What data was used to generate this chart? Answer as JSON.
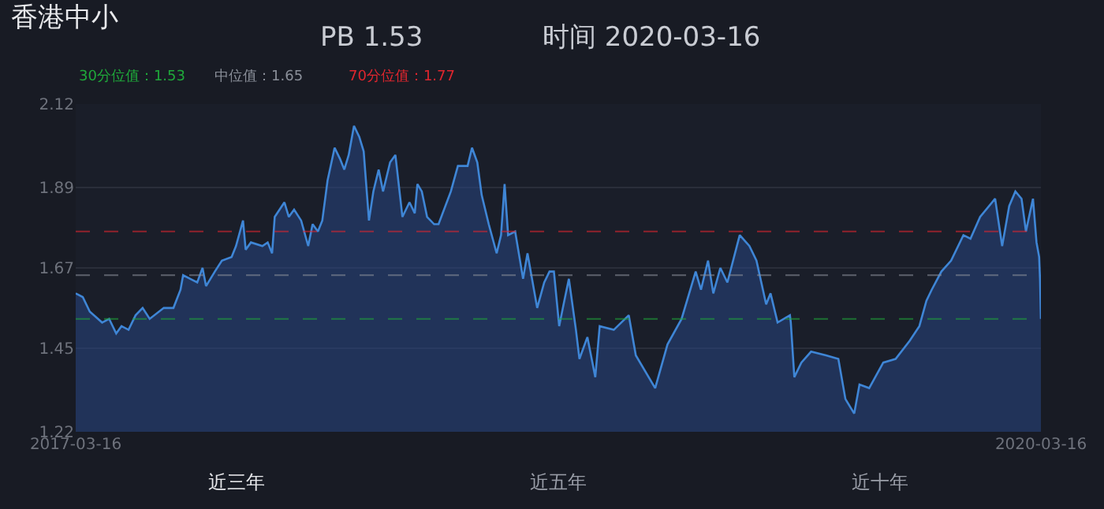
{
  "chart_data": {
    "type": "area",
    "title": "香港中小",
    "annotations": [
      "PB 1.53",
      "时间 2020-03-16",
      "近三年",
      "近五年",
      "近十年"
    ],
    "x": [
      "2017-03-16",
      "2017-03-24",
      "2017-04-01",
      "2017-04-15",
      "2017-04-23",
      "2017-05-01",
      "2017-05-07",
      "2017-05-15",
      "2017-05-23",
      "2017-05-31",
      "2017-06-08",
      "2017-06-24",
      "2017-07-05",
      "2017-07-13",
      "2017-07-16",
      "2017-07-24",
      "2017-08-01",
      "2017-08-07",
      "2017-08-11",
      "2017-08-21",
      "2017-08-29",
      "2017-09-09",
      "2017-09-14",
      "2017-09-22",
      "2017-09-25",
      "2017-10-01",
      "2017-10-14",
      "2017-10-20",
      "2017-10-25",
      "2017-10-28",
      "2017-11-08",
      "2017-11-13",
      "2017-11-19",
      "2017-11-27",
      "2017-12-05",
      "2017-12-10",
      "2017-12-16",
      "2017-12-21",
      "2017-12-27",
      "2018-01-04",
      "2018-01-10",
      "2018-01-15",
      "2018-01-20",
      "2018-01-26",
      "2018-02-01",
      "2018-02-06",
      "2018-02-12",
      "2018-02-17",
      "2018-02-23",
      "2018-02-28",
      "2018-03-08",
      "2018-03-14",
      "2018-03-22",
      "2018-03-30",
      "2018-04-05",
      "2018-04-08",
      "2018-04-13",
      "2018-04-19",
      "2018-04-27",
      "2018-05-02",
      "2018-05-16",
      "2018-05-24",
      "2018-06-04",
      "2018-06-09",
      "2018-06-15",
      "2018-06-20",
      "2018-06-28",
      "2018-07-07",
      "2018-07-12",
      "2018-07-16",
      "2018-07-20",
      "2018-07-28",
      "2018-08-06",
      "2018-08-11",
      "2018-08-22",
      "2018-08-30",
      "2018-09-05",
      "2018-09-10",
      "2018-09-16",
      "2018-09-21",
      "2018-09-27",
      "2018-10-05",
      "2018-10-09",
      "2018-10-18",
      "2018-10-27",
      "2018-11-01",
      "2018-11-17",
      "2018-12-04",
      "2018-12-12",
      "2019-01-03",
      "2019-01-17",
      "2019-02-02",
      "2019-02-18",
      "2019-02-24",
      "2019-03-04",
      "2019-03-10",
      "2019-03-18",
      "2019-03-26",
      "2019-04-09",
      "2019-04-20",
      "2019-04-28",
      "2019-05-09",
      "2019-05-14",
      "2019-05-22",
      "2019-06-05",
      "2019-06-06",
      "2019-06-10",
      "2019-06-18",
      "2019-06-29",
      "2019-07-16",
      "2019-07-30",
      "2019-08-07",
      "2019-08-17",
      "2019-08-23",
      "2019-09-03",
      "2019-09-19",
      "2019-10-03",
      "2019-10-19",
      "2019-10-30",
      "2019-11-07",
      "2019-11-13",
      "2019-11-24",
      "2019-12-05",
      "2019-12-19",
      "2019-12-27",
      "2020-01-07",
      "2020-01-24",
      "2020-02-01",
      "2020-02-09",
      "2020-02-16",
      "2020-02-23",
      "2020-02-28",
      "2020-03-07",
      "2020-03-11",
      "2020-03-14",
      "2020-03-15",
      "2020-03-16"
    ],
    "series": [
      {
        "color": "#3f86d6",
        "values": [
          1.6,
          1.59,
          1.55,
          1.52,
          1.53,
          1.49,
          1.51,
          1.5,
          1.54,
          1.56,
          1.53,
          1.56,
          1.56,
          1.61,
          1.65,
          1.64,
          1.63,
          1.67,
          1.62,
          1.66,
          1.69,
          1.7,
          1.73,
          1.8,
          1.72,
          1.74,
          1.73,
          1.74,
          1.71,
          1.81,
          1.85,
          1.81,
          1.83,
          1.8,
          1.73,
          1.79,
          1.77,
          1.8,
          1.91,
          2.0,
          1.97,
          1.94,
          1.98,
          2.06,
          2.03,
          1.99,
          1.8,
          1.88,
          1.94,
          1.88,
          1.96,
          1.98,
          1.81,
          1.85,
          1.82,
          1.9,
          1.88,
          1.81,
          1.79,
          1.79,
          1.88,
          1.95,
          1.95,
          2.0,
          1.96,
          1.87,
          1.79,
          1.71,
          1.76,
          1.9,
          1.76,
          1.77,
          1.64,
          1.71,
          1.56,
          1.63,
          1.66,
          1.66,
          1.51,
          1.57,
          1.64,
          1.5,
          1.42,
          1.48,
          1.37,
          1.51,
          1.5,
          1.54,
          1.43,
          1.34,
          1.46,
          1.53,
          1.66,
          1.61,
          1.69,
          1.6,
          1.67,
          1.63,
          1.76,
          1.73,
          1.69,
          1.57,
          1.6,
          1.52,
          1.54,
          1.52,
          1.37,
          1.41,
          1.44,
          1.43,
          1.42,
          1.31,
          1.27,
          1.35,
          1.34,
          1.41,
          1.42,
          1.47,
          1.51,
          1.58,
          1.61,
          1.66,
          1.69,
          1.76,
          1.75,
          1.81,
          1.86,
          1.73,
          1.84,
          1.88,
          1.86,
          1.77,
          1.86,
          1.74,
          1.7,
          1.64,
          1.53
        ]
      }
    ],
    "xlim": [
      "2017-03-16",
      "2020-03-16"
    ],
    "xticks": [
      "2017-03-16",
      "2020-03-16"
    ],
    "ylim": [
      1.22,
      2.12
    ],
    "yticks": [
      1.22,
      1.45,
      1.67,
      1.89,
      2.12
    ],
    "grid": "y",
    "ref_lines": [
      {
        "axis": "y",
        "value": 1.53,
        "label": "30分位值：1.53",
        "color": "#1fa83a",
        "line_style": "dashed"
      },
      {
        "axis": "y",
        "value": 1.65,
        "label": "中位值：1.65",
        "color": "#8a8f99",
        "line_style": "dashed"
      },
      {
        "axis": "y",
        "value": 1.77,
        "label": "70分位值：1.77",
        "color": "#e0262e",
        "line_style": "dashed"
      }
    ]
  }
}
